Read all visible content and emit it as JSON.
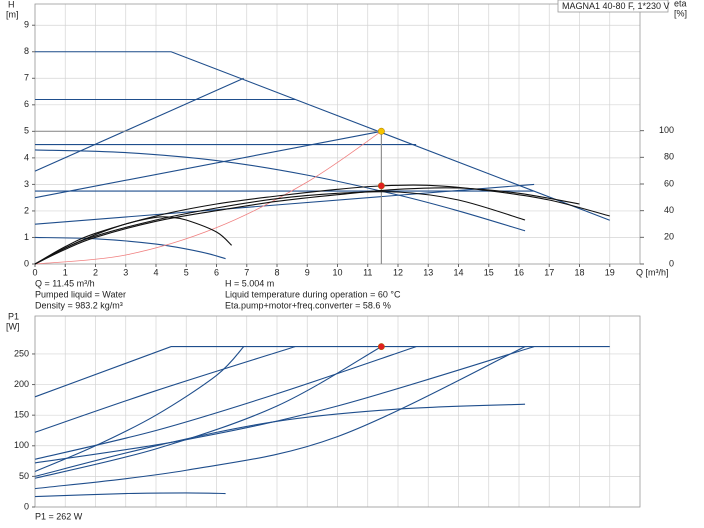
{
  "chart_data": [
    {
      "type": "line",
      "title": "MAGNA1 40-80 F, 1*230 V",
      "y_label": "H",
      "y_unit": "[m]",
      "y2_label": "eta",
      "y2_unit": "[%]",
      "x_label": "Q [m³/h]",
      "xlim": [
        0,
        20
      ],
      "xticks": [
        0,
        1,
        2,
        3,
        4,
        5,
        6,
        7,
        8,
        9,
        10,
        11,
        12,
        13,
        14,
        15,
        16,
        17,
        18,
        19
      ],
      "ylim": [
        0,
        9.8
      ],
      "yticks": [
        0,
        1,
        2,
        3,
        4,
        5,
        6,
        7,
        8,
        9
      ],
      "y2lim": [
        0,
        195
      ],
      "y2ticks": [
        0,
        20,
        40,
        60,
        80,
        100
      ],
      "grid": true,
      "series": [
        {
          "color": "#1f4e8c",
          "x": [
            0,
            4.5,
            19
          ],
          "values": [
            8,
            8,
            1.65
          ]
        },
        {
          "color": "#1f4e8c",
          "x": [
            0,
            6.9
          ],
          "values": [
            3.5,
            7
          ]
        },
        {
          "color": "#1f4e8c",
          "x": [
            0,
            8.6
          ],
          "values": [
            6.2,
            6.2
          ]
        },
        {
          "color": "#1f4e8c",
          "x": [
            0,
            12.6
          ],
          "values": [
            4.5,
            4.5
          ]
        },
        {
          "color": "#1f4e8c",
          "x": [
            0,
            16.5
          ],
          "values": [
            2.75,
            2.75
          ]
        },
        {
          "color": "#1f4e8c",
          "x": [
            0,
            11.45
          ],
          "values": [
            2.5,
            5
          ]
        },
        {
          "color": "#1f4e8c",
          "x": [
            0,
            16.5
          ],
          "values": [
            1.5,
            3
          ]
        },
        {
          "color": "#1f4e8c",
          "curve": "smooth",
          "x": [
            0,
            3,
            6,
            9,
            12,
            14,
            16.2
          ],
          "values": [
            4.3,
            4.2,
            3.9,
            3.35,
            2.6,
            2,
            1.25
          ]
        },
        {
          "color": "#1f4e8c",
          "curve": "smooth",
          "x": [
            0,
            2,
            4,
            5.5,
            6.3
          ],
          "values": [
            1,
            0.95,
            0.75,
            0.45,
            0.2
          ]
        },
        {
          "color": "#888888",
          "x": [
            0,
            11.45
          ],
          "values": [
            5.004,
            5.004
          ]
        },
        {
          "color": "#888888",
          "x": [
            11.45,
            11.45
          ],
          "values": [
            0,
            5.004
          ]
        },
        {
          "color": "#f08080",
          "curve": "smooth",
          "x": [
            0,
            3,
            6,
            9,
            11.45
          ],
          "values": [
            0,
            0.34,
            1.37,
            3.09,
            5
          ]
        },
        {
          "color": "#111111",
          "axis": "y2",
          "curve": "smooth",
          "x": [
            0,
            1,
            2,
            4,
            6,
            8,
            10,
            12,
            14,
            16.2
          ],
          "values": [
            0,
            12,
            21,
            33,
            42,
            49,
            53,
            54,
            48,
            33
          ]
        },
        {
          "color": "#111111",
          "axis": "y2",
          "curve": "smooth",
          "x": [
            0,
            1,
            2,
            4,
            6,
            8,
            10,
            11.45,
            13,
            15,
            17,
            19
          ],
          "values": [
            0,
            13,
            23,
            36,
            45,
            51,
            56,
            58.6,
            59,
            55,
            48,
            36
          ]
        },
        {
          "color": "#111111",
          "axis": "y2",
          "curve": "smooth",
          "x": [
            0,
            1,
            2,
            4,
            6,
            8,
            10,
            12,
            14,
            16,
            18
          ],
          "values": [
            0,
            11,
            20,
            32,
            40,
            47,
            52,
            56,
            57,
            53,
            45
          ]
        },
        {
          "color": "#111111",
          "axis": "y2",
          "curve": "smooth",
          "x": [
            0,
            1,
            2,
            3,
            4,
            4.5,
            5,
            6,
            6.5
          ],
          "values": [
            0,
            12,
            22,
            30,
            35,
            35,
            33,
            24,
            14
          ]
        }
      ],
      "markers": [
        {
          "x": 11.45,
          "y": 5.004,
          "color": "#f5c400"
        },
        {
          "x": 11.45,
          "y": 58.6,
          "color": "#e02020",
          "axis": "y2"
        }
      ],
      "info": [
        "Q = 11.45 m³/h",
        "H = 5.004 m",
        "Pumped liquid = Water",
        "Liquid temperature during operation = 60 °C",
        "Density = 983.2 kg/m³",
        "Eta.pump+motor+freq.converter = 58.6 %"
      ]
    },
    {
      "type": "line",
      "y_label": "P1",
      "y_unit": "[W]",
      "xlim": [
        0,
        20
      ],
      "ylim": [
        0,
        312
      ],
      "yticks": [
        0,
        50,
        100,
        150,
        200,
        250
      ],
      "grid": true,
      "series": [
        {
          "color": "#1f4e8c",
          "x": [
            0,
            4.5,
            19
          ],
          "values": [
            180,
            262,
            262
          ]
        },
        {
          "color": "#1f4e8c",
          "curve": "smooth",
          "x": [
            0,
            2,
            4,
            6,
            6.9
          ],
          "values": [
            58,
            100,
            150,
            215,
            262
          ]
        },
        {
          "color": "#1f4e8c",
          "curve": "smooth",
          "x": [
            0,
            4,
            8.6
          ],
          "values": [
            122,
            190,
            262
          ]
        },
        {
          "color": "#1f4e8c",
          "curve": "smooth",
          "x": [
            0,
            4,
            8,
            12.6
          ],
          "values": [
            78,
            125,
            185,
            262
          ]
        },
        {
          "color": "#1f4e8c",
          "curve": "smooth",
          "x": [
            0,
            4,
            8,
            11.45
          ],
          "values": [
            47,
            95,
            165,
            262
          ]
        },
        {
          "color": "#1f4e8c",
          "curve": "smooth",
          "x": [
            0,
            5,
            10,
            16.5
          ],
          "values": [
            72,
            110,
            165,
            262
          ]
        },
        {
          "color": "#1f4e8c",
          "curve": "smooth",
          "x": [
            0,
            5,
            10,
            16.2
          ],
          "values": [
            30,
            60,
            115,
            262
          ]
        },
        {
          "color": "#1f4e8c",
          "curve": "smooth",
          "x": [
            0,
            4,
            8,
            12,
            16.2
          ],
          "values": [
            50,
            100,
            140,
            160,
            168
          ]
        },
        {
          "color": "#1f4e8c",
          "curve": "smooth",
          "x": [
            0,
            3,
            5,
            6.3
          ],
          "values": [
            17,
            22,
            23,
            22
          ]
        }
      ],
      "markers": [
        {
          "x": 11.45,
          "y": 262,
          "color": "#e02020"
        }
      ],
      "info": [
        "P1 = 262 W"
      ]
    }
  ]
}
